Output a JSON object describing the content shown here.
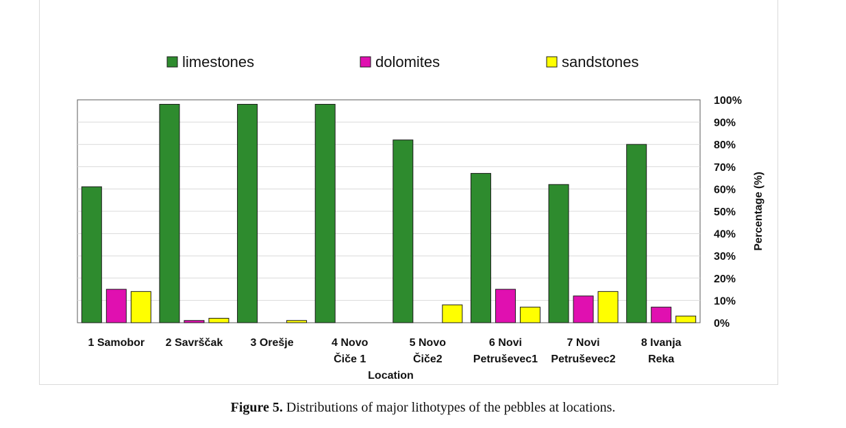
{
  "chart_data": {
    "type": "bar",
    "categories": [
      [
        "1 Samobor"
      ],
      [
        "2 Savrščak"
      ],
      [
        "3 Orešje"
      ],
      [
        "4 Novo",
        "Čiče 1"
      ],
      [
        "5 Novo",
        "Čiče2"
      ],
      [
        "6 Novi",
        "Petruševec1"
      ],
      [
        "7 Novi",
        "Petruševec2"
      ],
      [
        "8 Ivanja",
        "Reka"
      ]
    ],
    "series": [
      {
        "name": "limestones",
        "color": "#2e8b2e",
        "values": [
          61,
          98,
          98,
          98,
          82,
          67,
          62,
          80
        ]
      },
      {
        "name": "dolomites",
        "color": "#e010b0",
        "values": [
          15,
          1,
          0,
          0,
          0,
          15,
          12,
          7
        ]
      },
      {
        "name": "sandstones",
        "color": "#ffff00",
        "values": [
          14,
          2,
          1,
          0,
          8,
          7,
          14,
          3
        ]
      }
    ],
    "xlabel": "Location",
    "ylabel": "Percentage (%)",
    "ylim": [
      0,
      100
    ],
    "yticks": [
      "0%",
      "10%",
      "20%",
      "30%",
      "40%",
      "50%",
      "60%",
      "70%",
      "80%",
      "90%",
      "100%"
    ],
    "grid": true,
    "legend_position": "top",
    "y_axis_side": "right"
  },
  "caption": {
    "label": "Figure 5.",
    "text": " Distributions of major lithotypes of the pebbles at locations."
  }
}
